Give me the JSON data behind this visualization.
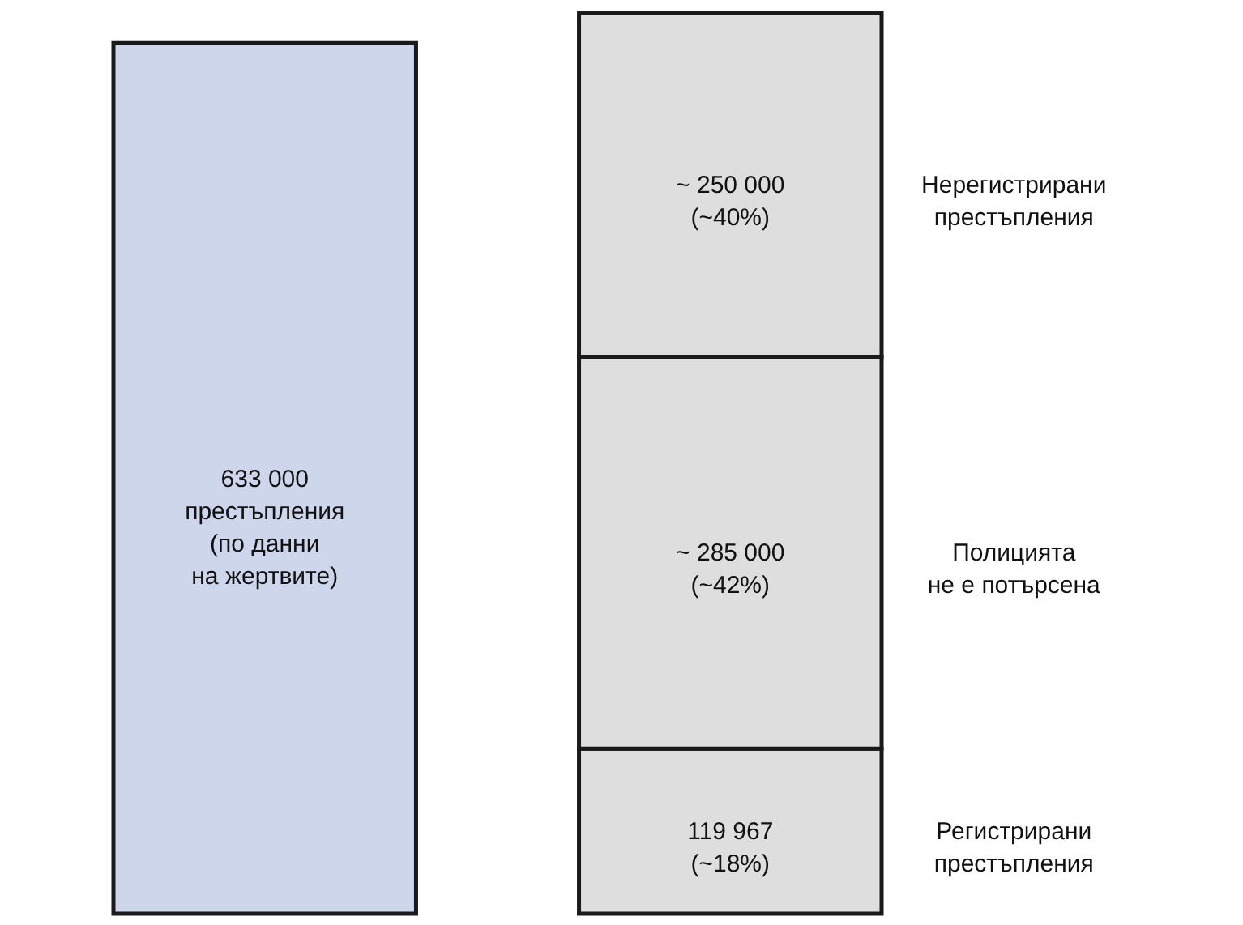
{
  "chart_data": {
    "type": "bar",
    "stacked": true,
    "categories": [
      null,
      null
    ],
    "series": [
      {
        "color": "#cdd6ea",
        "values": [
          633000,
          null
        ],
        "value_labels": [
          "633 000\nпрестъпления\n(по данни\nна жертвите)",
          null
        ]
      },
      {
        "name": "Регистрирани\nпрестъпления",
        "color": "#dedede",
        "values": [
          null,
          119967
        ],
        "value_labels": [
          null,
          "119 967\n(~18%)"
        ]
      },
      {
        "name": "Полицията\nне е потърсена",
        "color": "#dedede",
        "values": [
          null,
          285000
        ],
        "value_labels": [
          null,
          "~ 285 000\n(~42%)"
        ]
      },
      {
        "name": "Нерегистрирани\nпрестъпления",
        "color": "#dedede",
        "values": [
          null,
          250000
        ],
        "value_labels": [
          null,
          "~ 250 000\n(~40%)"
        ]
      }
    ]
  }
}
